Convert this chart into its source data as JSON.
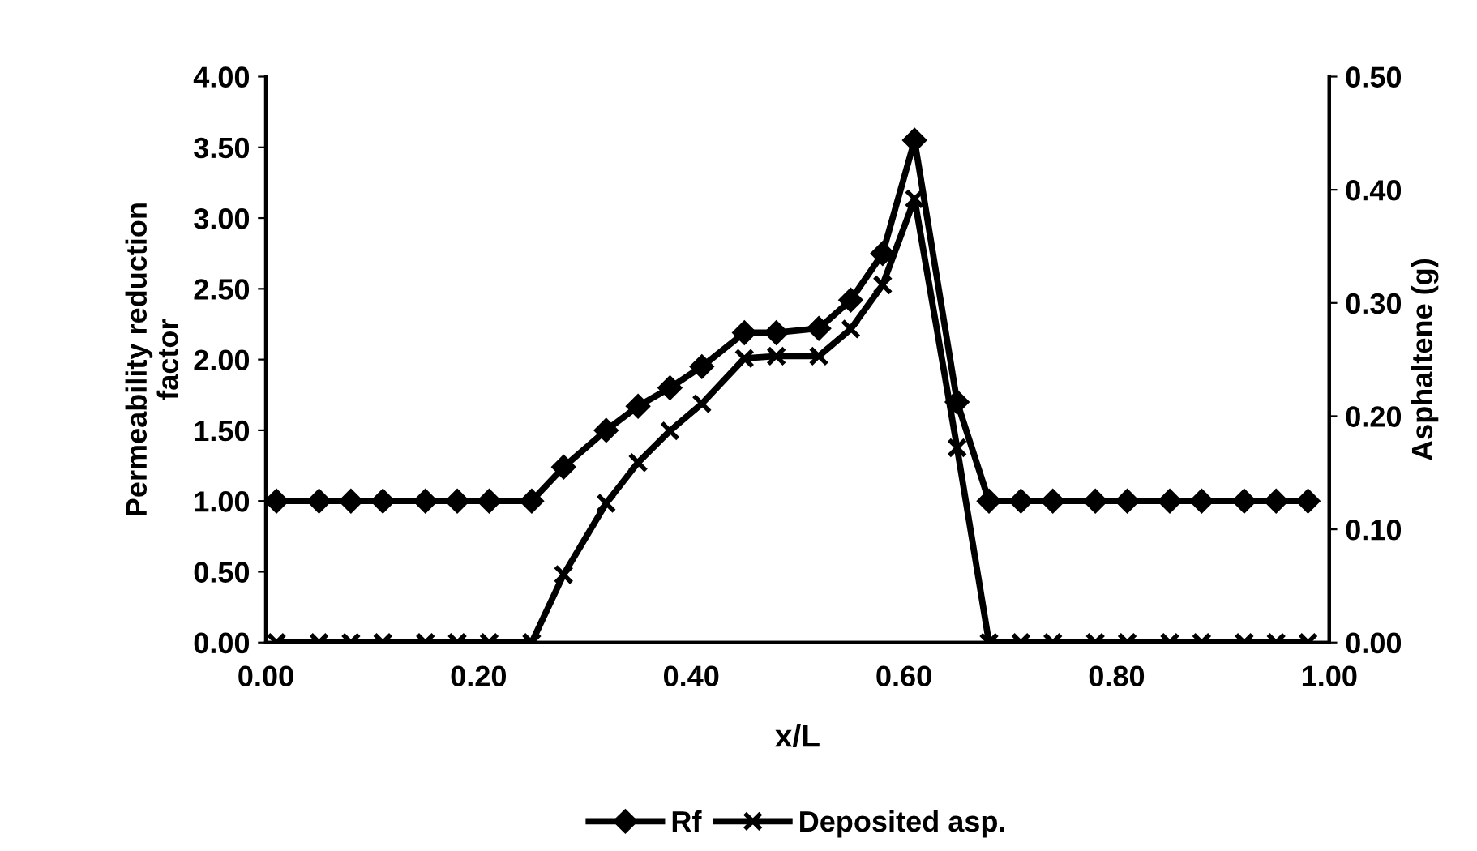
{
  "chart_data": {
    "type": "line",
    "xlabel": "x/L",
    "ylabel": "Permeability reduction\nfactor",
    "y2label": "Asphaltene (g)",
    "xlim": [
      0,
      1
    ],
    "xticks": [
      {
        "value": 0,
        "label": "0.00"
      },
      {
        "value": 0.2,
        "label": "0.20"
      },
      {
        "value": 0.4,
        "label": "0.40"
      },
      {
        "value": 0.6,
        "label": "0.60"
      },
      {
        "value": 0.8,
        "label": "0.80"
      },
      {
        "value": 1,
        "label": "1.00"
      }
    ],
    "ylim": [
      0,
      4
    ],
    "yticks": [
      {
        "value": 0,
        "label": "0.00"
      },
      {
        "value": 0.5,
        "label": "0.50"
      },
      {
        "value": 1,
        "label": "1.00"
      },
      {
        "value": 1.5,
        "label": "1.50"
      },
      {
        "value": 2,
        "label": "2.00"
      },
      {
        "value": 2.5,
        "label": "2.50"
      },
      {
        "value": 3,
        "label": "3.00"
      },
      {
        "value": 3.5,
        "label": "3.50"
      },
      {
        "value": 4,
        "label": "4.00"
      }
    ],
    "y2lim": [
      0,
      0.5
    ],
    "y2ticks": [
      {
        "value": 0,
        "label": "0.00"
      },
      {
        "value": 0.1,
        "label": "0.10"
      },
      {
        "value": 0.2,
        "label": "0.20"
      },
      {
        "value": 0.3,
        "label": "0.30"
      },
      {
        "value": 0.4,
        "label": "0.40"
      },
      {
        "value": 0.5,
        "label": "0.50"
      }
    ],
    "x": [
      0.01,
      0.05,
      0.08,
      0.11,
      0.15,
      0.18,
      0.21,
      0.25,
      0.28,
      0.32,
      0.35,
      0.38,
      0.41,
      0.45,
      0.48,
      0.52,
      0.55,
      0.58,
      0.61,
      0.65,
      0.68,
      0.71,
      0.74,
      0.78,
      0.81,
      0.85,
      0.88,
      0.92,
      0.95,
      0.98
    ],
    "series": [
      {
        "name": "Rf",
        "color": "#000000",
        "marker": "diamond",
        "values": [
          1.0,
          1.0,
          1.0,
          1.0,
          1.0,
          1.0,
          1.0,
          1.0,
          1.24,
          1.5,
          1.67,
          1.8,
          1.95,
          2.19,
          2.19,
          2.22,
          2.42,
          2.75,
          3.55,
          1.7,
          1.0,
          1.0,
          1.0,
          1.0,
          1.0,
          1.0,
          1.0,
          1.0,
          1.0,
          1.0
        ]
      },
      {
        "name": "Deposited asp.",
        "color": "#000000",
        "marker": "cross",
        "axis": "y2",
        "values": [
          0,
          0,
          0,
          0,
          0,
          0,
          0,
          0,
          0.06,
          0.123,
          0.159,
          0.187,
          0.211,
          0.251,
          0.253,
          0.253,
          0.277,
          0.316,
          0.392,
          0.172,
          0,
          0,
          0,
          0,
          0,
          0,
          0,
          0,
          0,
          0
        ]
      }
    ],
    "legend": "bottom",
    "grid": false,
    "line_style": "solid"
  }
}
